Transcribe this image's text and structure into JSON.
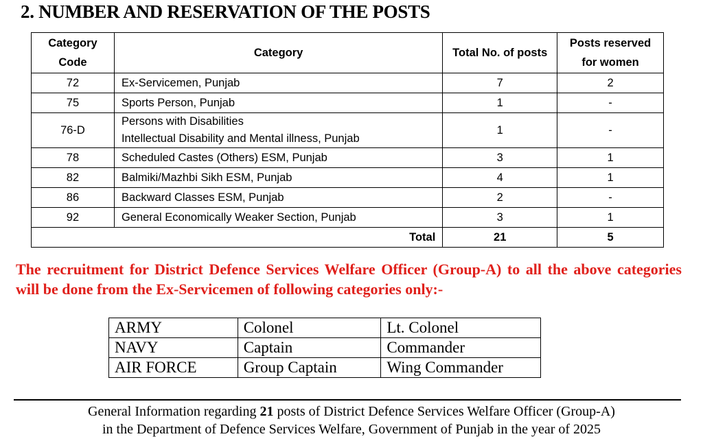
{
  "heading": "2.  NUMBER AND RESERVATION OF THE POSTS",
  "posts_table": {
    "headers": {
      "code": "Category Code",
      "category": "Category",
      "total": "Total No. of posts",
      "women": "Posts reserved for women"
    },
    "rows": [
      {
        "code": "72",
        "category": "Ex-Servicemen, Punjab",
        "category2": "",
        "total": "7",
        "women": "2"
      },
      {
        "code": "75",
        "category": "Sports Person, Punjab",
        "category2": "",
        "total": "1",
        "women": "-"
      },
      {
        "code": "76-D",
        "category": "Persons with Disabilities",
        "category2": "Intellectual Disability and Mental illness, Punjab",
        "total": "1",
        "women": "-"
      },
      {
        "code": "78",
        "category": "Scheduled Castes (Others) ESM, Punjab",
        "category2": "",
        "total": "3",
        "women": "1"
      },
      {
        "code": "82",
        "category": "Balmiki/Mazhbi Sikh ESM, Punjab",
        "category2": "",
        "total": "4",
        "women": "1"
      },
      {
        "code": "86",
        "category": "Backward Classes ESM, Punjab",
        "category2": "",
        "total": "2",
        "women": "-"
      },
      {
        "code": "92",
        "category": "General Economically Weaker Section, Punjab",
        "category2": "",
        "total": "3",
        "women": "1"
      }
    ],
    "total_label": "Total",
    "total_posts": "21",
    "total_women": "5"
  },
  "notice": "The recruitment for District Defence Services Welfare Officer (Group-A) to all the above categories will be done from the Ex-Servicemen of following categories only:-",
  "notice_color": "#e0201b",
  "ranks_table": [
    [
      "ARMY",
      "Colonel",
      "Lt. Colonel"
    ],
    [
      "NAVY",
      "Captain",
      "Commander"
    ],
    [
      "AIR FORCE",
      "Group Captain",
      "Wing Commander"
    ]
  ],
  "footer": {
    "pre": "General Information regarding ",
    "bold": "21",
    "post": " posts of District Defence Services Welfare Officer (Group-A)",
    "line2": "in the Department of Defence Services Welfare, Government of Punjab in the year of 2025"
  }
}
